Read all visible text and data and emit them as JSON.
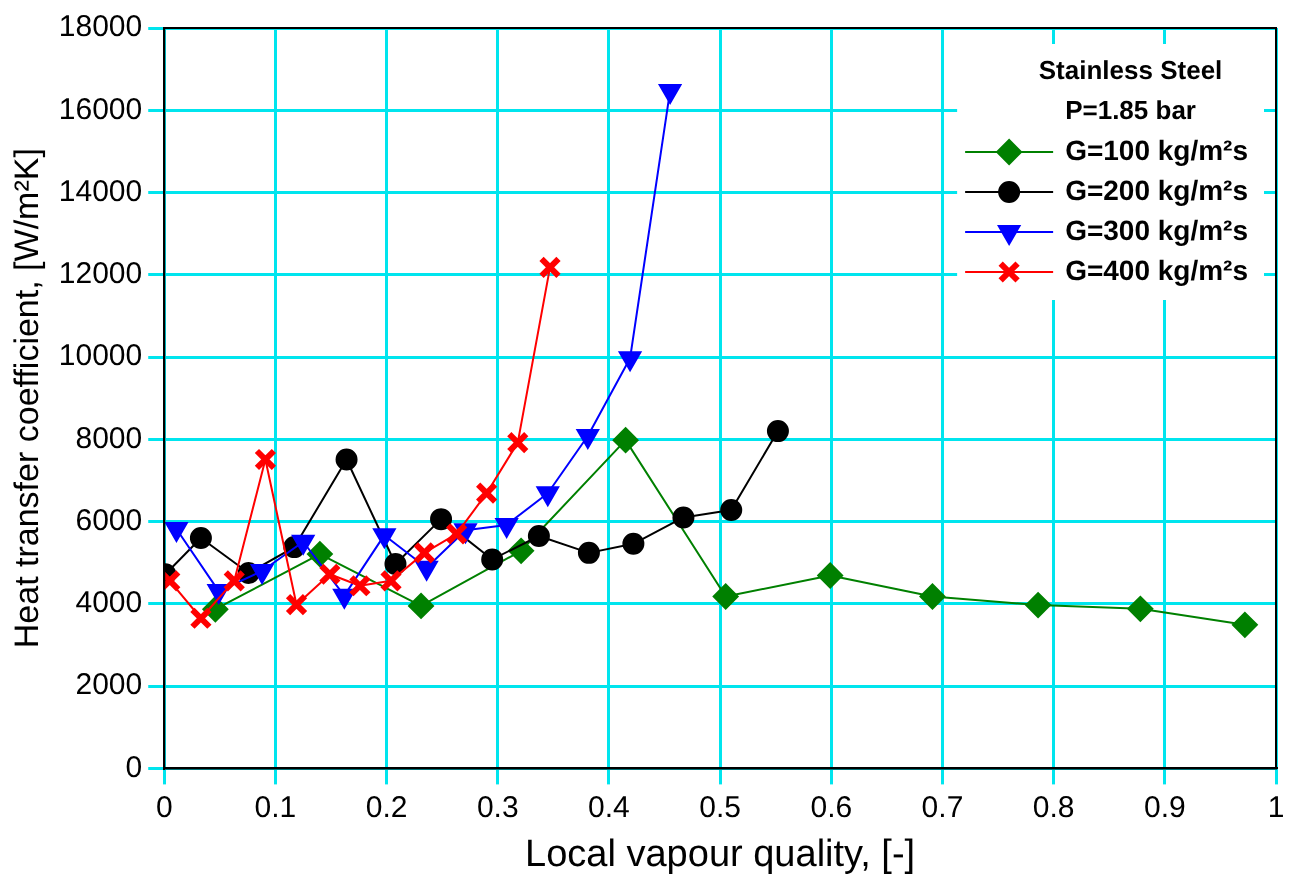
{
  "chart_data": {
    "type": "line",
    "xlabel": "Local vapour quality, [-]",
    "ylabel": "Heat transfer coefficient, [W/m²K]",
    "legend_title": "Stainless Steel",
    "annotations": [
      "P=1.85 bar"
    ],
    "xlim": [
      0,
      1
    ],
    "xticks": [
      0,
      0.1,
      0.2,
      0.3,
      0.4,
      0.5,
      0.6,
      0.7,
      0.8,
      0.9,
      1
    ],
    "ylim": [
      0,
      18000
    ],
    "yticks": [
      0,
      2000,
      4000,
      6000,
      8000,
      10000,
      12000,
      14000,
      16000,
      18000
    ],
    "grid": true,
    "legend": "top right",
    "series": [
      {
        "name": "G=100 kg/m²s",
        "color": "#008000",
        "marker": "diamond",
        "x": [
          0.046,
          0.14,
          0.231,
          0.321,
          0.415,
          0.505,
          0.599,
          0.691,
          0.786,
          0.878,
          0.972
        ],
        "values": [
          3870,
          5210,
          3950,
          5290,
          7980,
          4180,
          4690,
          4180,
          3970,
          3880,
          3490
        ]
      },
      {
        "name": "G=200 kg/m²s",
        "color": "#000000",
        "marker": "circle",
        "x": [
          0.001,
          0.033,
          0.076,
          0.117,
          0.164,
          0.208,
          0.249,
          0.295,
          0.337,
          0.382,
          0.422,
          0.467,
          0.51,
          0.552
        ],
        "values": [
          4720,
          5600,
          4750,
          5380,
          7510,
          4970,
          6060,
          5080,
          5650,
          5240,
          5460,
          6100,
          6280,
          8200
        ]
      },
      {
        "name": "G=300 kg/m²s",
        "color": "#0000ff",
        "marker": "triangle",
        "x": [
          0.011,
          0.049,
          0.088,
          0.125,
          0.162,
          0.198,
          0.236,
          0.271,
          0.308,
          0.345,
          0.381,
          0.419,
          0.455
        ],
        "values": [
          5820,
          4310,
          4800,
          5510,
          4200,
          5670,
          4880,
          5790,
          5920,
          6690,
          8080,
          9970,
          16470
        ]
      },
      {
        "name": "G=400 kg/m²s",
        "color": "#ff0000",
        "marker": "cross",
        "x": [
          0.005,
          0.033,
          0.063,
          0.091,
          0.119,
          0.149,
          0.176,
          0.204,
          0.234,
          0.263,
          0.29,
          0.318,
          0.347
        ],
        "values": [
          4560,
          3650,
          4560,
          7510,
          3980,
          4720,
          4440,
          4560,
          5240,
          5700,
          6690,
          7920,
          12180
        ]
      }
    ]
  }
}
